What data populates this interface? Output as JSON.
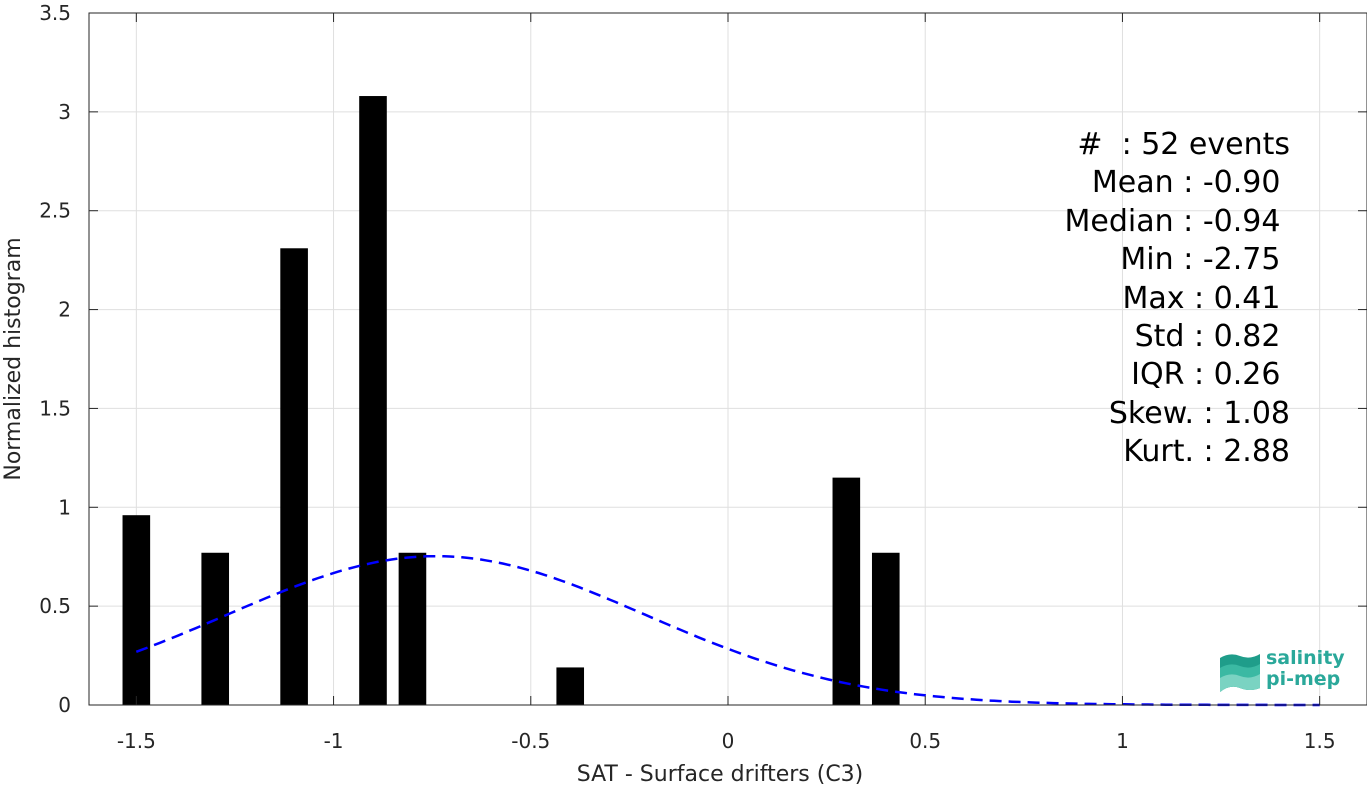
{
  "chart_data": {
    "type": "bar",
    "xlabel": "SAT - Surface drifters (C3)",
    "ylabel": "Normalized histogram",
    "xlim": [
      -1.62,
      1.62
    ],
    "ylim": [
      0,
      3.5
    ],
    "xticks": [
      -1.5,
      -1,
      -0.5,
      0,
      0.5,
      1,
      1.5
    ],
    "xtick_labels": [
      "-1.5",
      "-1",
      "-0.5",
      "0",
      "0.5",
      "1",
      "1.5"
    ],
    "yticks": [
      0,
      0.5,
      1,
      1.5,
      2,
      2.5,
      3,
      3.5
    ],
    "ytick_labels": [
      "0",
      "0.5",
      "1",
      "1.5",
      "2",
      "2.5",
      "3",
      "3.5"
    ],
    "grid": true,
    "bar_color": "#000000",
    "bin_width": 0.07,
    "bars": [
      {
        "x": -1.5,
        "value": 0.96
      },
      {
        "x": -1.3,
        "value": 0.77
      },
      {
        "x": -1.1,
        "value": 2.31
      },
      {
        "x": -0.9,
        "value": 3.08
      },
      {
        "x": -0.8,
        "value": 0.77
      },
      {
        "x": -0.4,
        "value": 0.19
      },
      {
        "x": 0.3,
        "value": 1.15
      },
      {
        "x": 0.4,
        "value": 0.77
      }
    ],
    "fit_curve": {
      "style": "dashed",
      "color": "#0000ff",
      "mean": -0.74,
      "std": 0.53,
      "x_range": [
        -1.5,
        1.5
      ]
    }
  },
  "stats": [
    {
      "label": "#  : 52 events"
    },
    {
      "label": "Mean : -0.90 "
    },
    {
      "label": "Median : -0.94 "
    },
    {
      "label": "Min : -2.75 "
    },
    {
      "label": "Max : 0.41 "
    },
    {
      "label": "Std : 0.82 "
    },
    {
      "label": "IQR : 0.26 "
    },
    {
      "label": "Skew. : 1.08"
    },
    {
      "label": "Kurt. : 2.88"
    }
  ],
  "logo": {
    "line1": "salinity",
    "line2": "pi-mep",
    "color": "#2aa89a"
  }
}
